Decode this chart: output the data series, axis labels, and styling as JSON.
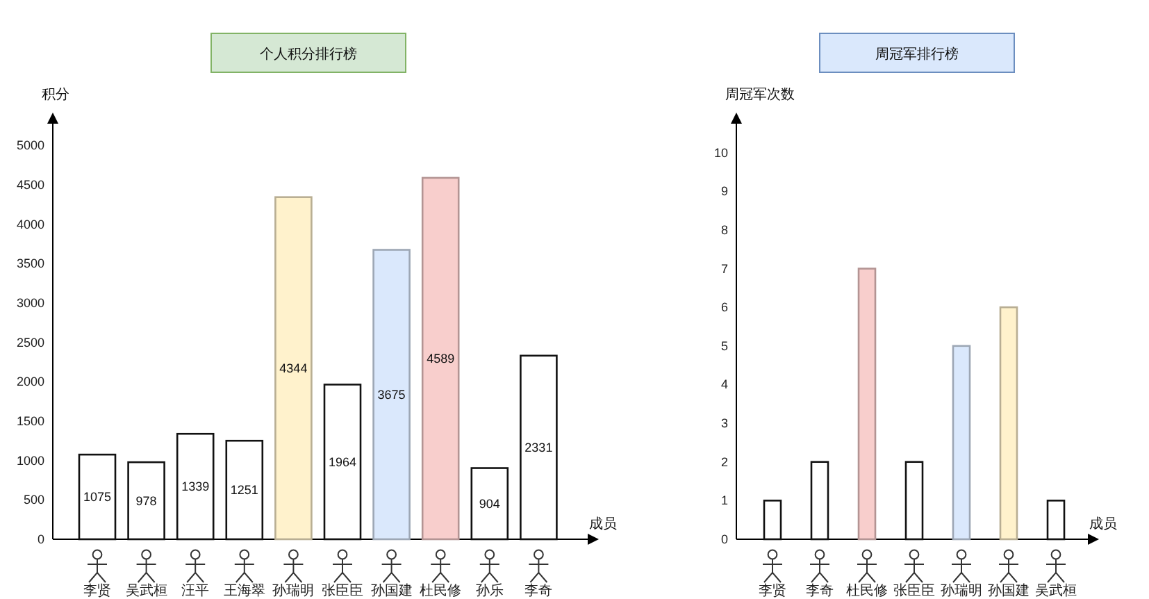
{
  "chart_data": [
    {
      "type": "bar",
      "title": "个人积分排行榜",
      "xlabel": "成员",
      "ylabel": "积分",
      "categories": [
        "李贤",
        "吴武桓",
        "汪平",
        "王海翠",
        "孙瑞明",
        "张臣臣",
        "孙国建",
        "杜民修",
        "孙乐",
        "李奇"
      ],
      "values": [
        1075,
        978,
        1339,
        1251,
        4344,
        1964,
        3675,
        4589,
        904,
        2331
      ],
      "colors": [
        "#ffffff",
        "#ffffff",
        "#ffffff",
        "#ffffff",
        "#fff2cc",
        "#ffffff",
        "#dae8fc",
        "#f8cecc",
        "#ffffff",
        "#ffffff"
      ],
      "ylim": [
        0,
        5400
      ],
      "yticks": [
        0,
        500,
        1000,
        1500,
        2000,
        2500,
        3000,
        3500,
        4000,
        4500,
        5000
      ],
      "data_labels": true
    },
    {
      "type": "bar",
      "title": "周冠军排行榜",
      "xlabel": "成员",
      "ylabel": "周冠军次数",
      "categories": [
        "李贤",
        "李奇",
        "杜民修",
        "张臣臣",
        "孙瑞明",
        "孙国建",
        "吴武桓"
      ],
      "values": [
        1,
        2,
        7,
        2,
        5,
        6,
        1
      ],
      "colors": [
        "#ffffff",
        "#ffffff",
        "#f8cecc",
        "#ffffff",
        "#dae8fc",
        "#fff2cc",
        "#ffffff"
      ],
      "ylim": [
        0,
        11
      ],
      "yticks": [
        0,
        1,
        2,
        3,
        4,
        5,
        6,
        7,
        8,
        9,
        10
      ]
    }
  ]
}
